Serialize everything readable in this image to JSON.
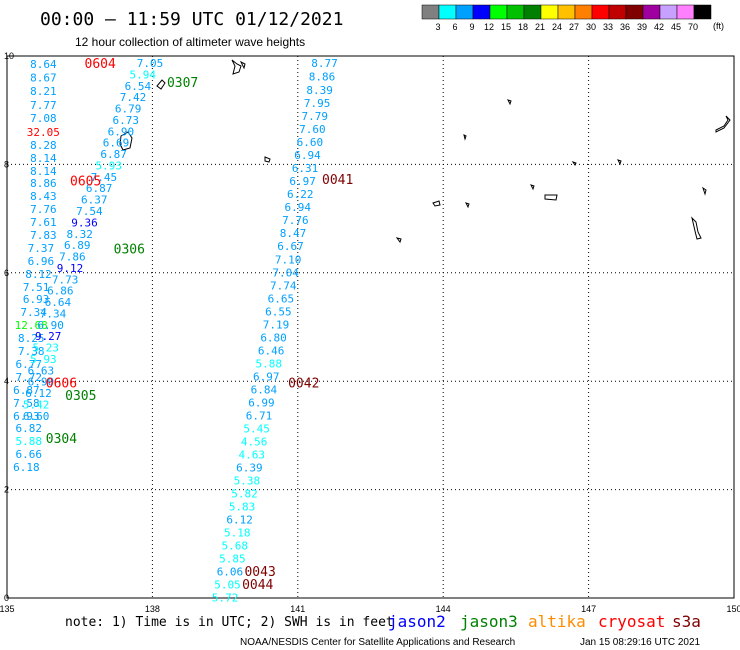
{
  "header": {
    "title": "00:00 – 11:59 UTC 01/12/2021",
    "subtitle": "12 hour collection of altimeter wave heights"
  },
  "legend": {
    "unit": "(ft)",
    "items": [
      {
        "label": "3",
        "color": "#808080"
      },
      {
        "label": "6",
        "color": "#00ffff"
      },
      {
        "label": "9",
        "color": "#00a0ff"
      },
      {
        "label": "12",
        "color": "#0000ff"
      },
      {
        "label": "15",
        "color": "#00ff00"
      },
      {
        "label": "18",
        "color": "#00c000"
      },
      {
        "label": "21",
        "color": "#008000"
      },
      {
        "label": "24",
        "color": "#ffff00"
      },
      {
        "label": "27",
        "color": "#ffc000"
      },
      {
        "label": "30",
        "color": "#ff8000"
      },
      {
        "label": "33",
        "color": "#ff0000"
      },
      {
        "label": "36",
        "color": "#c00000"
      },
      {
        "label": "39",
        "color": "#800000"
      },
      {
        "label": "42",
        "color": "#a000a0"
      },
      {
        "label": "45",
        "color": "#c8a0ff"
      },
      {
        "label": "70",
        "color": "#ff80ff"
      },
      {
        "label": "",
        "color": "#000000"
      }
    ]
  },
  "footer": {
    "note": "note:  1) Time is in UTC; 2) SWH is in feet",
    "satellites": [
      {
        "name": "jason2",
        "color": "#0000ff"
      },
      {
        "name": "jason3",
        "color": "#008000"
      },
      {
        "name": "altika",
        "color": "#ff8c00"
      },
      {
        "name": "cryosat",
        "color": "#ff0000"
      },
      {
        "name": "s3a",
        "color": "#800000"
      }
    ],
    "credit": "NOAA/NESDIS Center for Satellite Applications and Research",
    "timestamp": "Jan 15 08:29:16 UTC 2021"
  },
  "chart_data": {
    "type": "scatter",
    "xlim": [
      135,
      150
    ],
    "ylim": [
      0,
      10
    ],
    "x_ticks": [
      "135",
      "138",
      "141",
      "144",
      "147",
      "150"
    ],
    "y_ticks": [
      "0",
      "2",
      "4",
      "6",
      "8",
      "10"
    ],
    "grid": true,
    "time_labels": [
      {
        "lon": 136.6,
        "lat": 9.87,
        "text": "0604",
        "color": "#ff0000"
      },
      {
        "lon": 138.3,
        "lat": 9.52,
        "text": "0307",
        "color": "#008000"
      },
      {
        "lon": 136.3,
        "lat": 7.7,
        "text": "0605",
        "color": "#ff0000"
      },
      {
        "lon": 137.2,
        "lat": 6.45,
        "text": "0306",
        "color": "#008000"
      },
      {
        "lon": 141.5,
        "lat": 7.73,
        "text": "0041",
        "color": "#800000"
      },
      {
        "lon": 135.8,
        "lat": 3.98,
        "text": "0606",
        "color": "#ff0000"
      },
      {
        "lon": 136.2,
        "lat": 3.75,
        "text": "0305",
        "color": "#008000"
      },
      {
        "lon": 140.8,
        "lat": 3.98,
        "text": "0042",
        "color": "#800000"
      },
      {
        "lon": 135.8,
        "lat": 2.95,
        "text": "0304",
        "color": "#008000"
      },
      {
        "lon": 139.9,
        "lat": 0.5,
        "text": "0043",
        "color": "#800000"
      },
      {
        "lon": 139.85,
        "lat": 0.26,
        "text": "0044",
        "color": "#800000"
      }
    ],
    "series": [
      {
        "name": "jason3 track 1",
        "points": [
          {
            "lon": 135.75,
            "lat": 9.85,
            "swh": 8.64
          },
          {
            "lon": 135.75,
            "lat": 9.6,
            "swh": 8.67
          },
          {
            "lon": 135.75,
            "lat": 9.35,
            "swh": 8.21
          },
          {
            "lon": 135.75,
            "lat": 9.1,
            "swh": 7.77
          },
          {
            "lon": 135.75,
            "lat": 8.86,
            "swh": 7.08
          },
          {
            "lon": 135.75,
            "lat": 8.6,
            "swh": 32.05
          },
          {
            "lon": 135.75,
            "lat": 8.36,
            "swh": 8.28
          },
          {
            "lon": 135.75,
            "lat": 8.12,
            "swh": 8.14
          },
          {
            "lon": 135.75,
            "lat": 7.88,
            "swh": 8.14
          },
          {
            "lon": 135.75,
            "lat": 7.66,
            "swh": 8.86
          },
          {
            "lon": 135.75,
            "lat": 7.42,
            "swh": 8.43
          },
          {
            "lon": 135.75,
            "lat": 7.18,
            "swh": 7.76
          },
          {
            "lon": 135.75,
            "lat": 6.94,
            "swh": 7.61
          },
          {
            "lon": 135.75,
            "lat": 6.7,
            "swh": 7.83
          },
          {
            "lon": 135.7,
            "lat": 6.46,
            "swh": 7.37
          },
          {
            "lon": 135.7,
            "lat": 6.22,
            "swh": 6.96
          },
          {
            "lon": 135.65,
            "lat": 5.98,
            "swh": 8.12
          },
          {
            "lon": 135.6,
            "lat": 5.74,
            "swh": 7.51
          },
          {
            "lon": 135.6,
            "lat": 5.52,
            "swh": 6.93
          },
          {
            "lon": 135.55,
            "lat": 5.28,
            "swh": 7.34
          },
          {
            "lon": 135.5,
            "lat": 5.04,
            "swh": 12.68
          },
          {
            "lon": 135.5,
            "lat": 4.8,
            "swh": 8.25
          },
          {
            "lon": 135.5,
            "lat": 4.56,
            "swh": 7.38
          },
          {
            "lon": 135.45,
            "lat": 4.32,
            "swh": 6.77
          },
          {
            "lon": 135.45,
            "lat": 4.08,
            "swh": 7.72
          },
          {
            "lon": 135.4,
            "lat": 3.84,
            "swh": 6.87
          },
          {
            "lon": 135.4,
            "lat": 3.6,
            "swh": 7.58
          },
          {
            "lon": 135.4,
            "lat": 3.36,
            "swh": 6.93
          },
          {
            "lon": 135.45,
            "lat": 3.14,
            "swh": 6.82
          },
          {
            "lon": 135.45,
            "lat": 2.9,
            "swh": 5.88
          },
          {
            "lon": 135.45,
            "lat": 2.66,
            "swh": 6.66
          },
          {
            "lon": 135.4,
            "lat": 2.42,
            "swh": 6.18
          }
        ]
      },
      {
        "name": "jason3 track 2",
        "points": [
          {
            "lon": 137.95,
            "lat": 9.87,
            "swh": 7.05
          },
          {
            "lon": 137.8,
            "lat": 9.66,
            "swh": 5.94
          },
          {
            "lon": 137.7,
            "lat": 9.45,
            "swh": 6.54
          },
          {
            "lon": 137.6,
            "lat": 9.24,
            "swh": 7.42
          },
          {
            "lon": 137.5,
            "lat": 9.03,
            "swh": 6.79
          },
          {
            "lon": 137.45,
            "lat": 8.82,
            "swh": 6.73
          },
          {
            "lon": 137.35,
            "lat": 8.61,
            "swh": 6.9
          },
          {
            "lon": 137.25,
            "lat": 8.4,
            "swh": 6.69
          },
          {
            "lon": 137.2,
            "lat": 8.19,
            "swh": 6.87
          },
          {
            "lon": 137.1,
            "lat": 7.98,
            "swh": 5.93
          },
          {
            "lon": 137.0,
            "lat": 7.77,
            "swh": 7.45
          },
          {
            "lon": 136.9,
            "lat": 7.56,
            "swh": 6.87
          },
          {
            "lon": 136.8,
            "lat": 7.35,
            "swh": 6.37
          },
          {
            "lon": 136.7,
            "lat": 7.14,
            "swh": 7.54
          },
          {
            "lon": 136.6,
            "lat": 6.93,
            "swh": 9.36
          },
          {
            "lon": 136.5,
            "lat": 6.72,
            "swh": 8.32
          },
          {
            "lon": 136.45,
            "lat": 6.51,
            "swh": 6.89
          },
          {
            "lon": 136.35,
            "lat": 6.3,
            "swh": 7.86
          },
          {
            "lon": 136.3,
            "lat": 6.09,
            "swh": 9.12
          },
          {
            "lon": 136.2,
            "lat": 5.88,
            "swh": 7.73
          },
          {
            "lon": 136.1,
            "lat": 5.67,
            "swh": 6.86
          },
          {
            "lon": 136.05,
            "lat": 5.46,
            "swh": 6.64
          },
          {
            "lon": 135.95,
            "lat": 5.25,
            "swh": 7.34
          },
          {
            "lon": 135.9,
            "lat": 5.04,
            "swh": 6.9
          },
          {
            "lon": 135.85,
            "lat": 4.83,
            "swh": 9.27
          },
          {
            "lon": 135.8,
            "lat": 4.62,
            "swh": 5.23
          },
          {
            "lon": 135.75,
            "lat": 4.41,
            "swh": 5.93
          },
          {
            "lon": 135.7,
            "lat": 4.2,
            "swh": 6.63
          },
          {
            "lon": 135.7,
            "lat": 3.99,
            "swh": 6.9
          },
          {
            "lon": 135.65,
            "lat": 3.78,
            "swh": 6.12
          },
          {
            "lon": 135.6,
            "lat": 3.57,
            "swh": 5.42
          },
          {
            "lon": 135.6,
            "lat": 3.36,
            "swh": 6.6
          }
        ]
      },
      {
        "name": "s3a track",
        "points": [
          {
            "lon": 141.55,
            "lat": 9.87,
            "swh": 8.77
          },
          {
            "lon": 141.5,
            "lat": 9.62,
            "swh": 8.86
          },
          {
            "lon": 141.45,
            "lat": 9.37,
            "swh": 8.39
          },
          {
            "lon": 141.4,
            "lat": 9.13,
            "swh": 7.95
          },
          {
            "lon": 141.35,
            "lat": 8.89,
            "swh": 7.79
          },
          {
            "lon": 141.3,
            "lat": 8.65,
            "swh": 7.6
          },
          {
            "lon": 141.25,
            "lat": 8.41,
            "swh": 6.6
          },
          {
            "lon": 141.2,
            "lat": 8.17,
            "swh": 6.94
          },
          {
            "lon": 141.15,
            "lat": 7.93,
            "swh": 6.31
          },
          {
            "lon": 141.1,
            "lat": 7.69,
            "swh": 6.97
          },
          {
            "lon": 141.05,
            "lat": 7.45,
            "swh": 6.22
          },
          {
            "lon": 141.0,
            "lat": 7.21,
            "swh": 6.94
          },
          {
            "lon": 140.95,
            "lat": 6.97,
            "swh": 7.76
          },
          {
            "lon": 140.9,
            "lat": 6.73,
            "swh": 8.47
          },
          {
            "lon": 140.85,
            "lat": 6.49,
            "swh": 6.67
          },
          {
            "lon": 140.8,
            "lat": 6.25,
            "swh": 7.1
          },
          {
            "lon": 140.75,
            "lat": 6.01,
            "swh": 7.04
          },
          {
            "lon": 140.7,
            "lat": 5.77,
            "swh": 7.74
          },
          {
            "lon": 140.65,
            "lat": 5.53,
            "swh": 6.65
          },
          {
            "lon": 140.6,
            "lat": 5.29,
            "swh": 6.55
          },
          {
            "lon": 140.55,
            "lat": 5.05,
            "swh": 7.19
          },
          {
            "lon": 140.5,
            "lat": 4.81,
            "swh": 6.8
          },
          {
            "lon": 140.45,
            "lat": 4.57,
            "swh": 6.46
          },
          {
            "lon": 140.4,
            "lat": 4.33,
            "swh": 5.88
          },
          {
            "lon": 140.35,
            "lat": 4.09,
            "swh": 6.97
          },
          {
            "lon": 140.3,
            "lat": 3.85,
            "swh": 6.84
          },
          {
            "lon": 140.25,
            "lat": 3.61,
            "swh": 6.99
          },
          {
            "lon": 140.2,
            "lat": 3.37,
            "swh": 6.71
          },
          {
            "lon": 140.15,
            "lat": 3.13,
            "swh": 5.45
          },
          {
            "lon": 140.1,
            "lat": 2.89,
            "swh": 4.56
          },
          {
            "lon": 140.05,
            "lat": 2.65,
            "swh": 4.63
          },
          {
            "lon": 140.0,
            "lat": 2.41,
            "swh": 6.39
          },
          {
            "lon": 139.95,
            "lat": 2.17,
            "swh": 5.38
          },
          {
            "lon": 139.9,
            "lat": 1.93,
            "swh": 5.82
          },
          {
            "lon": 139.85,
            "lat": 1.69,
            "swh": 5.83
          },
          {
            "lon": 139.8,
            "lat": 1.45,
            "swh": 6.12
          },
          {
            "lon": 139.75,
            "lat": 1.21,
            "swh": 5.18
          },
          {
            "lon": 139.7,
            "lat": 0.97,
            "swh": 5.68
          },
          {
            "lon": 139.65,
            "lat": 0.73,
            "swh": 5.85
          },
          {
            "lon": 139.6,
            "lat": 0.49,
            "swh": 6.06
          },
          {
            "lon": 139.55,
            "lat": 0.25,
            "swh": 5.05
          },
          {
            "lon": 139.5,
            "lat": 0.01,
            "swh": 5.72
          }
        ]
      }
    ]
  }
}
